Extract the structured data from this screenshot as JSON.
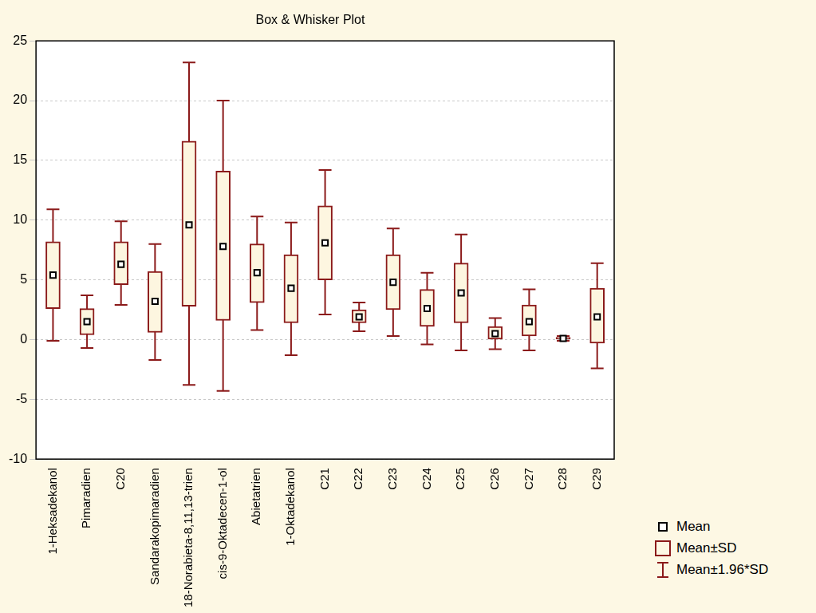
{
  "chart_data": {
    "type": "box",
    "title": "Box & Whisker Plot",
    "categories": [
      "1-Heksadekanol",
      "Pimaradien",
      "C20",
      "Sandarakopimaradien",
      "18-Norabieta-8,11,13-trien",
      "cis-9-Oktadecen-1-ol",
      "Abietatrien",
      "1-Oktadekanol",
      "C21",
      "C22",
      "C23",
      "C24",
      "C25",
      "C26",
      "C27",
      "C28",
      "C29"
    ],
    "series": [
      {
        "name": "Mean",
        "type": "point",
        "marker": "square",
        "color": "#000000",
        "values": [
          5.4,
          1.5,
          6.3,
          3.2,
          9.6,
          7.8,
          5.6,
          4.3,
          8.1,
          1.9,
          4.8,
          2.6,
          3.9,
          0.5,
          1.5,
          0.1,
          1.9
        ]
      },
      {
        "name": "Mean±SD",
        "type": "box",
        "color": "#8b1a1a",
        "low": [
          2.6,
          0.4,
          4.6,
          0.6,
          2.8,
          1.6,
          3.1,
          1.4,
          5.0,
          1.4,
          2.5,
          1.1,
          1.4,
          0.0,
          0.3,
          0.0,
          -0.3
        ],
        "high": [
          8.2,
          2.6,
          8.2,
          5.7,
          16.6,
          14.1,
          8.0,
          7.1,
          11.2,
          2.5,
          7.1,
          4.2,
          6.4,
          1.1,
          2.9,
          0.2,
          4.3
        ]
      },
      {
        "name": "Mean±1.96*SD",
        "type": "whisker",
        "color": "#8b1a1a",
        "low": [
          -0.1,
          -0.7,
          2.9,
          -1.7,
          -3.8,
          -4.3,
          0.8,
          -1.3,
          2.1,
          0.7,
          0.3,
          -0.4,
          -0.9,
          -0.8,
          -0.9,
          -0.1,
          -2.4
        ],
        "high": [
          10.9,
          3.7,
          9.9,
          8.0,
          23.2,
          20.0,
          10.3,
          9.8,
          14.2,
          3.1,
          9.3,
          5.6,
          8.8,
          1.8,
          4.2,
          0.3,
          6.4
        ]
      }
    ],
    "ylim": [
      -10,
      25
    ],
    "yticks": [
      -10,
      -5,
      0,
      5,
      10,
      15,
      20,
      25
    ],
    "grid": true,
    "legend": "lower right"
  }
}
